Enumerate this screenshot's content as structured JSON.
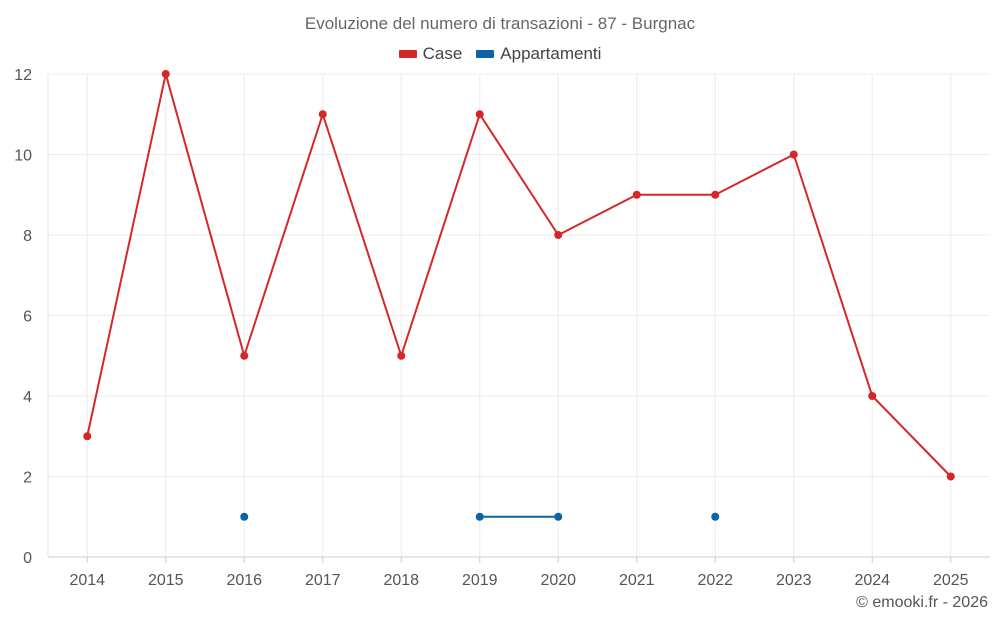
{
  "chart_data": {
    "type": "line",
    "title": "Evoluzione del numero di transazioni - 87 - Burgnac",
    "categories": [
      "2014",
      "2015",
      "2016",
      "2017",
      "2018",
      "2019",
      "2020",
      "2021",
      "2022",
      "2023",
      "2024",
      "2025"
    ],
    "ylim": [
      0,
      12
    ],
    "yticks": [
      0,
      2,
      4,
      6,
      8,
      10,
      12
    ],
    "grid": true,
    "legend_position": "top-center",
    "series": [
      {
        "name": "Case",
        "color": "#d62728",
        "values": [
          3,
          12,
          5,
          11,
          5,
          11,
          8,
          9,
          9,
          10,
          4,
          2
        ]
      },
      {
        "name": "Appartamenti",
        "color": "#0b62a4",
        "values": [
          null,
          null,
          1,
          null,
          null,
          1,
          1,
          null,
          1,
          null,
          null,
          null
        ]
      }
    ]
  },
  "credit": "© emooki.fr - 2026"
}
